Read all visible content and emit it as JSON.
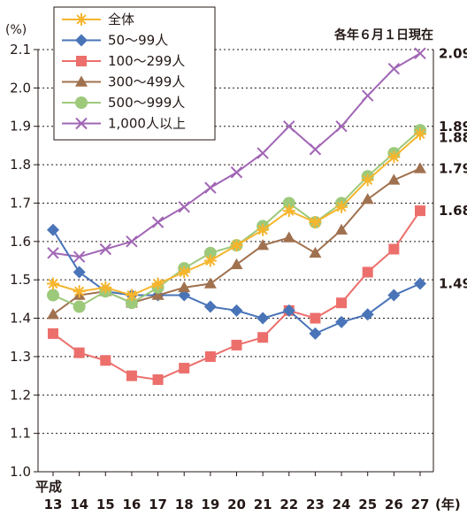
{
  "chart_data": {
    "type": "line",
    "y_unit": "(%)",
    "x_unit": "(年)",
    "era_label": "平成",
    "note": "各年６月１日現在",
    "categories": [
      "13",
      "14",
      "15",
      "16",
      "17",
      "18",
      "19",
      "20",
      "21",
      "22",
      "23",
      "24",
      "25",
      "26",
      "27"
    ],
    "ylim": [
      1.0,
      2.1
    ],
    "y_ticks": [
      "1.0",
      "1.1",
      "1.2",
      "1.3",
      "1.4",
      "1.5",
      "1.6",
      "1.7",
      "1.8",
      "1.9",
      "2.0",
      "2.1"
    ],
    "grid": "horizontal dotted",
    "legend_placement": "top-left",
    "series": [
      {
        "name": "全体",
        "color": "#f6b52d",
        "marker": "asterisk",
        "values": [
          1.49,
          1.47,
          1.48,
          1.46,
          1.49,
          1.52,
          1.55,
          1.59,
          1.63,
          1.68,
          1.65,
          1.69,
          1.76,
          1.82,
          1.88
        ],
        "end_label": "1.88"
      },
      {
        "name": "50～99人",
        "color": "#4a74b8",
        "marker": "diamond",
        "values": [
          1.63,
          1.52,
          1.47,
          1.46,
          1.46,
          1.46,
          1.43,
          1.42,
          1.4,
          1.42,
          1.36,
          1.39,
          1.41,
          1.46,
          1.49
        ],
        "end_label": "1.49"
      },
      {
        "name": "100～299人",
        "color": "#ec6f6c",
        "marker": "square",
        "values": [
          1.36,
          1.31,
          1.29,
          1.25,
          1.24,
          1.27,
          1.3,
          1.33,
          1.35,
          1.42,
          1.4,
          1.44,
          1.52,
          1.58,
          1.68
        ],
        "end_label": "1.68"
      },
      {
        "name": "300～499人",
        "color": "#a0714f",
        "marker": "triangle",
        "values": [
          1.41,
          1.46,
          1.47,
          1.44,
          1.46,
          1.48,
          1.49,
          1.54,
          1.59,
          1.61,
          1.57,
          1.63,
          1.71,
          1.76,
          1.79
        ],
        "end_label": "1.79"
      },
      {
        "name": "500～999人",
        "color": "#9dc97b",
        "marker": "circle",
        "values": [
          1.46,
          1.43,
          1.47,
          1.44,
          1.48,
          1.53,
          1.57,
          1.59,
          1.64,
          1.7,
          1.65,
          1.7,
          1.77,
          1.83,
          1.89
        ],
        "end_label": "1.89"
      },
      {
        "name": "1,000人以上",
        "color": "#a166b5",
        "marker": "x",
        "values": [
          1.57,
          1.56,
          1.58,
          1.6,
          1.65,
          1.69,
          1.74,
          1.78,
          1.83,
          1.9,
          1.84,
          1.9,
          1.98,
          2.05,
          2.09
        ],
        "end_label": "2.09"
      }
    ]
  }
}
